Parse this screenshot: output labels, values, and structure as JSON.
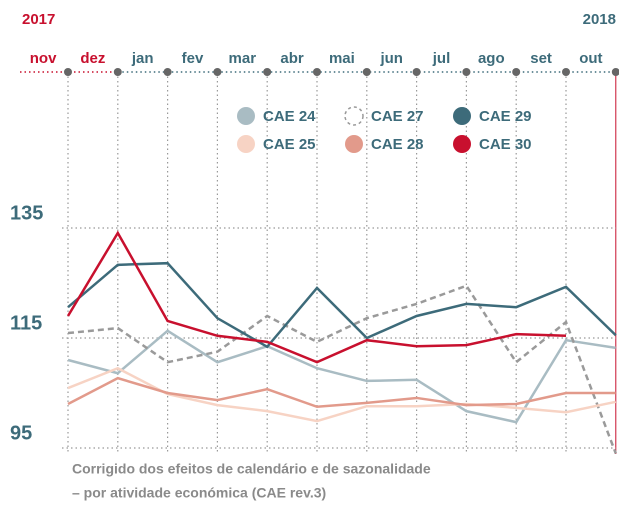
{
  "chart_data": {
    "type": "line",
    "annotations": [
      {
        "text": "2017",
        "color": "#c8102e"
      },
      {
        "text": "2018",
        "color": "#3d6b7a"
      }
    ],
    "categories": [
      "nov",
      "dez",
      "jan",
      "fev",
      "mar",
      "abr",
      "mai",
      "jun",
      "jul",
      "ago",
      "set",
      "out"
    ],
    "category_colors": [
      "#c8102e",
      "#c8102e",
      "#3d6b7a",
      "#3d6b7a",
      "#3d6b7a",
      "#3d6b7a",
      "#3d6b7a",
      "#3d6b7a",
      "#3d6b7a",
      "#3d6b7a",
      "#3d6b7a",
      "#3d6b7a"
    ],
    "series": [
      {
        "name": "CAE 24",
        "color": "#a9bcc3",
        "values": [
          111,
          108.6,
          116.3,
          110.6,
          113.5,
          109.5,
          107.2,
          107.4,
          101.7,
          99.7,
          114.6,
          113.2
        ]
      },
      {
        "name": "CAE 27",
        "color": "#9a9a9a",
        "dashed": true,
        "values": [
          115.9,
          116.8,
          110.6,
          112.5,
          119,
          114.3,
          118.6,
          121.2,
          124.5,
          110.6,
          117.9,
          94
        ]
      },
      {
        "name": "CAE 29",
        "color": "#3d6b7a",
        "values": [
          120.6,
          128.3,
          128.6,
          118.6,
          113.4,
          124.1,
          115,
          119,
          121.2,
          120.6,
          124.3,
          115.5
        ]
      },
      {
        "name": "CAE 25",
        "color": "#f7d3c4",
        "values": [
          105.9,
          109.5,
          104.8,
          102.8,
          101.7,
          99.9,
          102.6,
          102.6,
          103,
          102.3,
          101.5,
          103.4
        ]
      },
      {
        "name": "CAE 28",
        "color": "#e29a8b",
        "values": [
          103,
          107.7,
          105,
          103.7,
          105.7,
          102.5,
          103.2,
          104.1,
          102.8,
          103,
          105,
          105
        ]
      },
      {
        "name": "CAE 30",
        "color": "#c8102e",
        "values": [
          119,
          134.1,
          118.1,
          115.4,
          114.3,
          110.6,
          114.6,
          113.5,
          113.7,
          115.7,
          115.4,
          null
        ]
      }
    ],
    "ylim": [
      95,
      135
    ],
    "yticks": [
      95,
      115,
      135
    ],
    "grid": true,
    "caption": [
      "Corrigido dos efeitos de calendário e de sazonalidade",
      "– por atividade económica (CAE rev.3)"
    ]
  }
}
